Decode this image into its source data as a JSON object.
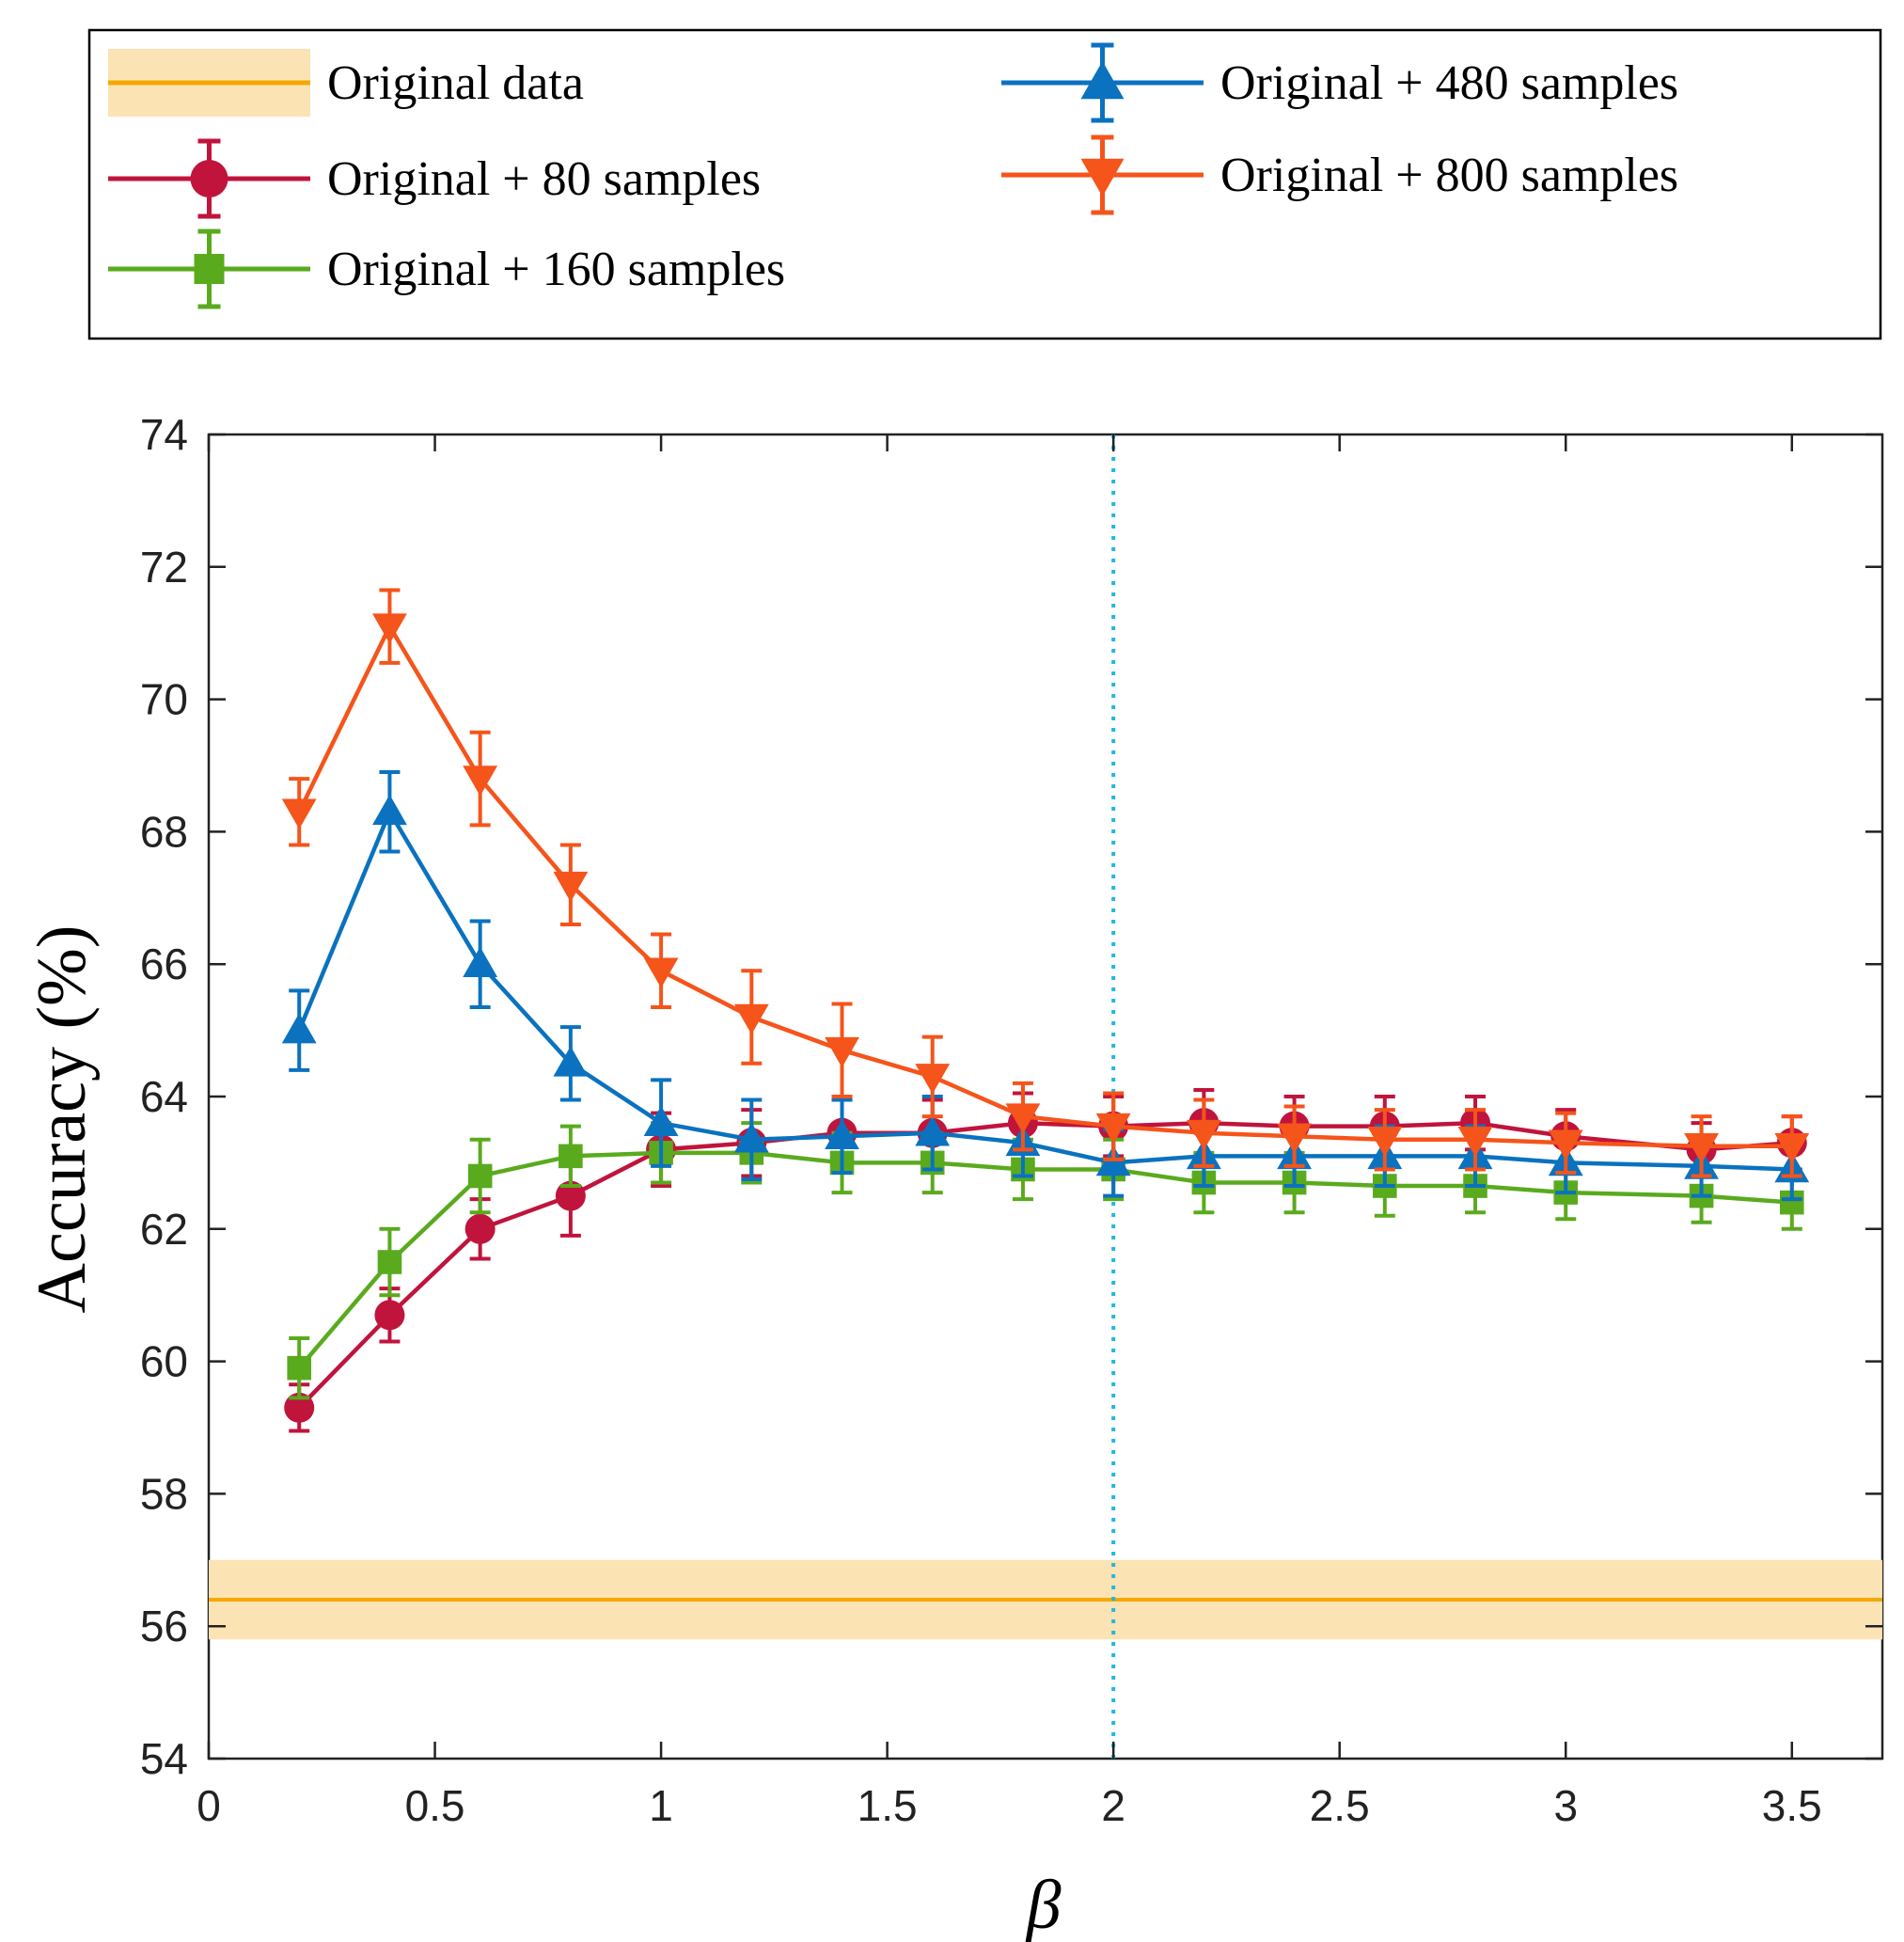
{
  "chart_data": {
    "type": "line",
    "xlabel": "β",
    "ylabel": "Accuracy (%)",
    "xlim": [
      0,
      3.7
    ],
    "ylim": [
      54,
      74
    ],
    "xticks": [
      0,
      0.5,
      1,
      1.5,
      2,
      2.5,
      3,
      3.5
    ],
    "xtick_labels": [
      "0",
      "0.5",
      "1",
      "1.5",
      "2",
      "2.5",
      "3",
      "3.5"
    ],
    "yticks": [
      54,
      56,
      58,
      60,
      62,
      64,
      66,
      68,
      70,
      72,
      74
    ],
    "ytick_labels": [
      "54",
      "56",
      "58",
      "60",
      "62",
      "64",
      "66",
      "68",
      "70",
      "72",
      "74"
    ],
    "grid": false,
    "legend_placement": "top (outside, above plot)",
    "vertical_reference_line": {
      "x": 2,
      "style": "dotted",
      "color": "#1fb8e0"
    },
    "baseline": {
      "name": "Original  data",
      "value": 56.4,
      "band": [
        55.8,
        57.0
      ],
      "color": "#f5a800",
      "band_color": "#fbe3b3"
    },
    "x": [
      0.2,
      0.4,
      0.6,
      0.8,
      1.0,
      1.2,
      1.4,
      1.6,
      1.8,
      2.0,
      2.2,
      2.4,
      2.6,
      2.8,
      3.0,
      3.3,
      3.5
    ],
    "series": [
      {
        "name": "Original  + 80 samples",
        "color": "#c0143c",
        "marker": "circle",
        "values": [
          59.3,
          60.7,
          62.0,
          62.5,
          63.2,
          63.3,
          63.45,
          63.45,
          63.6,
          63.55,
          63.6,
          63.55,
          63.55,
          63.6,
          63.4,
          63.2,
          63.3
        ],
        "errors": [
          0.35,
          0.4,
          0.45,
          0.6,
          0.55,
          0.5,
          0.5,
          0.5,
          0.45,
          0.45,
          0.5,
          0.45,
          0.45,
          0.4,
          0.4,
          0.4,
          0.4
        ]
      },
      {
        "name": "Original  + 160 samples",
        "color": "#5aaa1e",
        "marker": "square",
        "values": [
          59.9,
          61.5,
          62.8,
          63.1,
          63.15,
          63.15,
          63.0,
          63.0,
          62.9,
          62.9,
          62.7,
          62.7,
          62.65,
          62.65,
          62.55,
          62.5,
          62.4
        ],
        "errors": [
          0.45,
          0.5,
          0.55,
          0.45,
          0.45,
          0.45,
          0.45,
          0.45,
          0.45,
          0.45,
          0.45,
          0.45,
          0.45,
          0.4,
          0.4,
          0.4,
          0.4
        ]
      },
      {
        "name": "Original  + 480 samples",
        "color": "#0a72bf",
        "marker": "triangle-up",
        "values": [
          65.0,
          68.3,
          66.0,
          64.5,
          63.6,
          63.35,
          63.4,
          63.45,
          63.3,
          63.0,
          63.1,
          63.1,
          63.1,
          63.1,
          63.0,
          62.95,
          62.9
        ],
        "errors": [
          0.6,
          0.6,
          0.65,
          0.55,
          0.65,
          0.6,
          0.55,
          0.55,
          0.5,
          0.5,
          0.45,
          0.45,
          0.45,
          0.45,
          0.45,
          0.45,
          0.45
        ]
      },
      {
        "name": "Original  + 800 samples",
        "color": "#f5541a",
        "marker": "triangle-down",
        "values": [
          68.3,
          71.1,
          68.8,
          67.2,
          65.9,
          65.2,
          64.7,
          64.3,
          63.7,
          63.55,
          63.45,
          63.4,
          63.35,
          63.35,
          63.3,
          63.25,
          63.25
        ],
        "errors": [
          0.5,
          0.55,
          0.7,
          0.6,
          0.55,
          0.7,
          0.7,
          0.6,
          0.5,
          0.5,
          0.5,
          0.45,
          0.45,
          0.45,
          0.45,
          0.45,
          0.45
        ]
      }
    ]
  }
}
